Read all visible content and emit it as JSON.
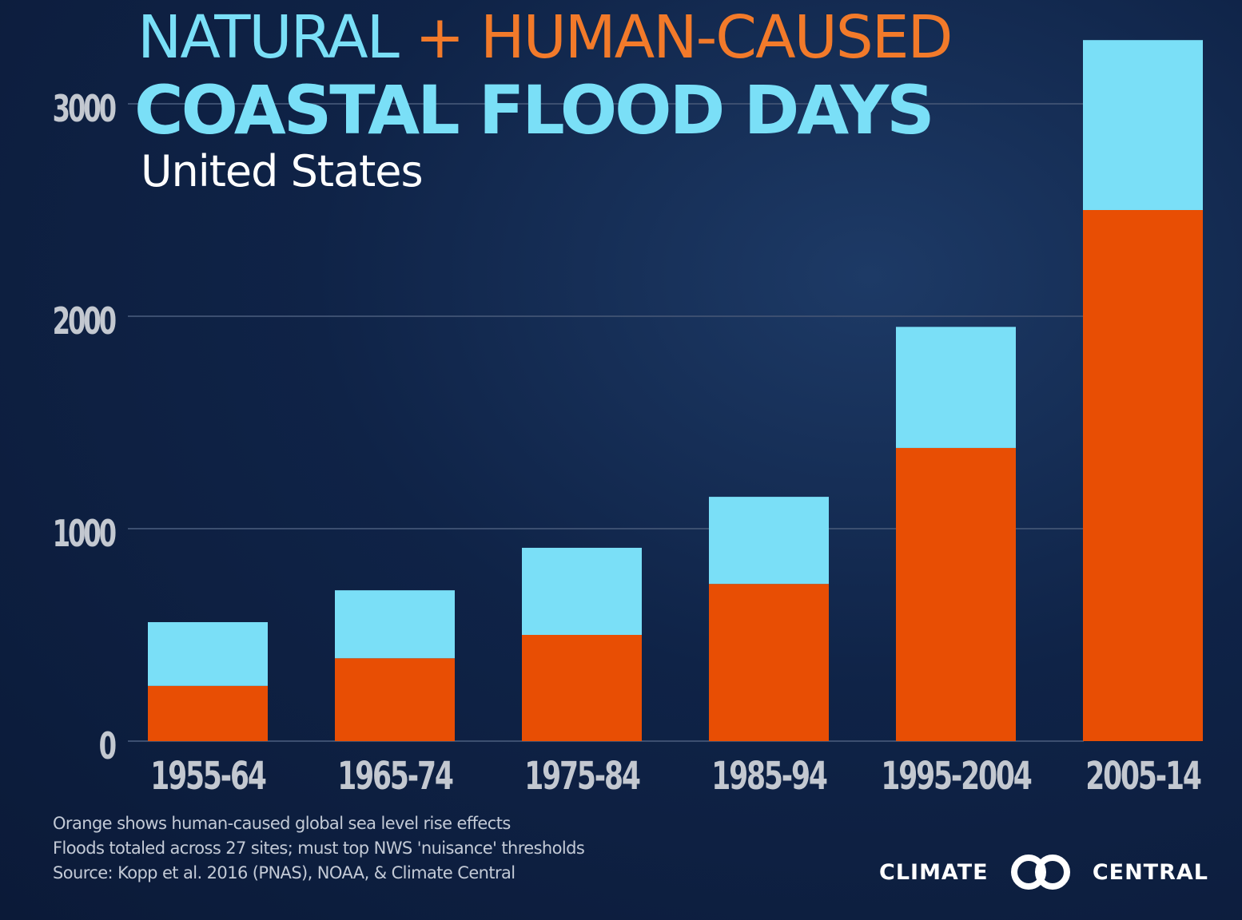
{
  "title": {
    "natural": "NATURAL",
    "plus": "+",
    "human": "HUMAN-CAUSED",
    "main": "COASTAL FLOOD DAYS"
  },
  "subtitle": "United States",
  "notes": [
    "Orange shows human-caused global sea level rise effects",
    "Floods totaled across 27 sites; must top NWS 'nuisance' thresholds",
    "Source: Kopp et al. 2016 (PNAS), NOAA, & Climate Central"
  ],
  "logo": {
    "left": "CLIMATE",
    "right": "CENTRAL",
    "icon": "interlocking-rings-icon"
  },
  "colors": {
    "natural": "#7adff7",
    "human": "#e84e04",
    "text_human_title": "#f27a2a",
    "axis_text": "#c3c8d0",
    "grid": "#3c4f70"
  },
  "chart_data": {
    "type": "bar",
    "stacked": true,
    "categories": [
      "1955-64",
      "1965-74",
      "1975-84",
      "1985-94",
      "1995-2004",
      "2005-14"
    ],
    "series": [
      {
        "name": "",
        "color": "#e84e04",
        "values": [
          260,
          390,
          500,
          740,
          1380,
          2500
        ]
      },
      {
        "name": "",
        "color": "#7adff7",
        "values": [
          300,
          320,
          410,
          410,
          570,
          800
        ]
      }
    ],
    "yticks": [
      0,
      1000,
      2000,
      3000
    ],
    "ylim": [
      0,
      3300
    ],
    "grid": true,
    "legend": "none",
    "xlabel": "",
    "ylabel": ""
  }
}
